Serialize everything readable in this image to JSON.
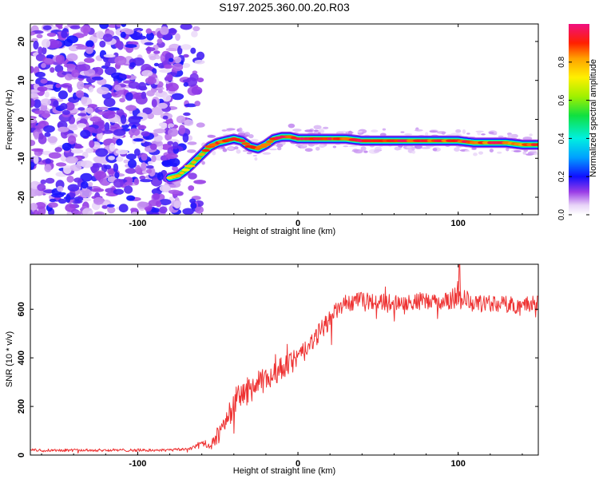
{
  "title": "S197.2025.360.00.20.R03",
  "chart_data": [
    {
      "type": "heatmap",
      "title": "S197.2025.360.00.20.R03",
      "xlabel": "Height of straight line (km)",
      "ylabel": "Frequency (Hz)",
      "xlim": [
        -167,
        150
      ],
      "ylim": [
        -24.5,
        24.5
      ],
      "xticks": [
        -100,
        0,
        100
      ],
      "yticks": [
        -20,
        -10,
        0,
        10,
        20
      ],
      "colorbar": {
        "label": "Normalized spectral amplitude",
        "range": [
          0,
          1
        ],
        "ticks": [
          0.0,
          0.2,
          0.4,
          0.6,
          0.8
        ]
      },
      "noise_region_x": [
        -167,
        -60
      ],
      "ridge": {
        "x": [
          -80,
          -75,
          -70,
          -65,
          -60,
          -55,
          -50,
          -45,
          -40,
          -35,
          -30,
          -25,
          -20,
          -15,
          -10,
          -5,
          0,
          10,
          20,
          30,
          40,
          50,
          60,
          70,
          80,
          90,
          100,
          110,
          120,
          130,
          140,
          150
        ],
        "y": [
          -15,
          -14.5,
          -13,
          -11,
          -9,
          -7,
          -6,
          -5.5,
          -5,
          -5.5,
          -7,
          -7.5,
          -6.5,
          -5,
          -4.5,
          -4.5,
          -5,
          -5,
          -5,
          -5,
          -5.5,
          -5.5,
          -5.5,
          -5.5,
          -5.5,
          -5.5,
          -5.5,
          -6,
          -6,
          -6,
          -6.5,
          -6.5
        ],
        "amplitude": [
          0.72,
          0.75,
          0.8,
          0.82,
          0.85,
          0.87,
          0.88,
          0.9,
          0.92,
          0.9,
          0.87,
          0.86,
          0.88,
          0.9,
          0.92,
          0.93,
          0.92,
          0.93,
          0.92,
          0.91,
          0.92,
          0.91,
          0.92,
          0.9,
          0.91,
          0.9,
          0.89,
          0.9,
          0.89,
          0.9,
          0.88,
          0.87
        ]
      }
    },
    {
      "type": "line",
      "title": "",
      "xlabel": "Height of straight line (km)",
      "ylabel": "SNR (10 * v/v)",
      "xlim": [
        -167,
        150
      ],
      "ylim": [
        0,
        785
      ],
      "xticks": [
        -100,
        0,
        100
      ],
      "yticks": [
        0,
        200,
        400,
        600
      ],
      "color": "#ee3333",
      "series": [
        {
          "name": "SNR",
          "x": [
            -167,
            -150,
            -125,
            -100,
            -80,
            -70,
            -65,
            -60,
            -58,
            -55,
            -50,
            -45,
            -40,
            -35,
            -30,
            -25,
            -20,
            -15,
            -10,
            -5,
            0,
            5,
            10,
            15,
            20,
            25,
            30,
            40,
            50,
            60,
            70,
            80,
            90,
            95,
            100,
            105,
            110,
            120,
            130,
            140,
            150
          ],
          "y": [
            20,
            20,
            20,
            20,
            20,
            25,
            30,
            55,
            40,
            30,
            80,
            150,
            210,
            250,
            270,
            290,
            310,
            330,
            360,
            380,
            400,
            430,
            470,
            520,
            560,
            600,
            625,
            635,
            630,
            630,
            630,
            630,
            630,
            640,
            650,
            640,
            620,
            625,
            620,
            615,
            630
          ],
          "noise_amplitude": [
            6,
            6,
            6,
            6,
            6,
            6,
            8,
            12,
            10,
            15,
            40,
            50,
            60,
            60,
            55,
            55,
            50,
            50,
            45,
            45,
            40,
            40,
            40,
            40,
            40,
            35,
            35,
            35,
            35,
            35,
            35,
            35,
            35,
            40,
            45,
            40,
            35,
            35,
            35,
            35,
            35
          ]
        }
      ]
    }
  ]
}
